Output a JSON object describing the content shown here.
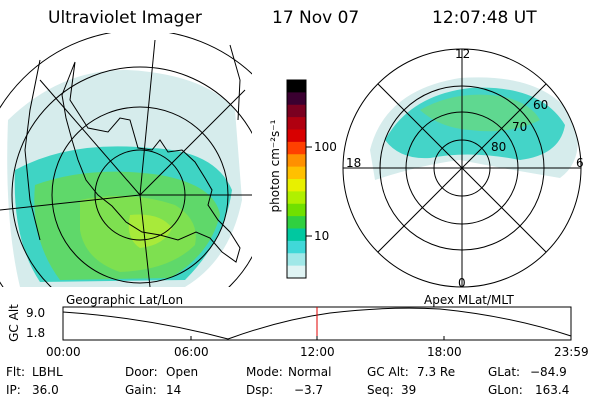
{
  "header": {
    "instrument": "Ultraviolet Imager",
    "date": "17 Nov 07",
    "time": "12:07:48 UT"
  },
  "left_map": {
    "caption": "Geographic Lat/Lon"
  },
  "right_map": {
    "caption": "Apex MLat/MLT",
    "mlt_labels": {
      "top": "12",
      "bottom": "0",
      "left": "18",
      "right": "6"
    },
    "lat_labels": [
      "60",
      "70",
      "80"
    ]
  },
  "colorbar": {
    "unit_label": "photon cm⁻²s⁻¹",
    "tick_labels": [
      "100",
      "10"
    ],
    "colors": [
      "#000000",
      "#3a0030",
      "#7a0020",
      "#b00010",
      "#d80000",
      "#ff4000",
      "#ff9000",
      "#ffc000",
      "#e8f000",
      "#b0f000",
      "#70e000",
      "#30d040",
      "#00c8a0",
      "#40d8d8",
      "#a0e8e8",
      "#e0f4f4"
    ]
  },
  "timeline": {
    "axis_label": "GC Alt",
    "y_ticks": [
      "9.0",
      "1.8"
    ],
    "x_ticks": [
      "00:00",
      "06:00",
      "12:00",
      "18:00",
      "23:59"
    ],
    "marker_color": "#e00000"
  },
  "status": {
    "row1": [
      {
        "label": "Flt:",
        "value": "LBHL"
      },
      {
        "label": "Door:",
        "value": "Open"
      },
      {
        "label": "Mode:",
        "value": "Normal"
      },
      {
        "label": "GC Alt:",
        "value": "7.3 Re"
      },
      {
        "label": "GLat:",
        "value": "−84.9"
      }
    ],
    "row2": [
      {
        "label": "IP:",
        "value": "36.0"
      },
      {
        "label": "Gain:",
        "value": "14"
      },
      {
        "label": "Dsp:",
        "value": "−3.7"
      },
      {
        "label": "Seq:",
        "value": "39"
      },
      {
        "label": "GLon:",
        "value": "163.4"
      }
    ]
  }
}
